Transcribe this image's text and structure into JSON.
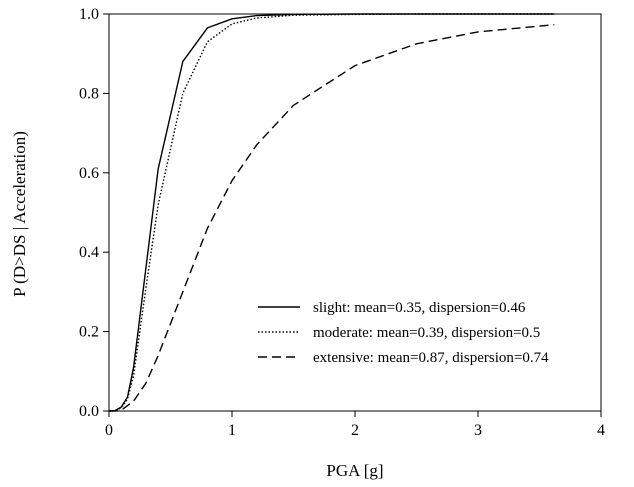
{
  "chart_data": {
    "type": "line",
    "title": "",
    "xlabel": "PGA [g]",
    "ylabel": "P (D>DS | Acceleration)",
    "xlim": [
      0,
      4
    ],
    "ylim": [
      0,
      1.0
    ],
    "xticks": [
      "0",
      "1",
      "2",
      "3",
      "4"
    ],
    "yticks": [
      "0.0",
      "0.2",
      "0.4",
      "0.6",
      "0.8",
      "1.0"
    ],
    "grid": false,
    "legend_position": "bottom-right",
    "series": [
      {
        "name": "slight: mean=0.35, dispersion=0.46",
        "style": "solid",
        "x": [
          0,
          0.05,
          0.1,
          0.15,
          0.2,
          0.3,
          0.4,
          0.6,
          0.8,
          1.0,
          1.2,
          1.5,
          2.0,
          2.5,
          3.0,
          3.62
        ],
        "y": [
          0,
          0.001,
          0.01,
          0.035,
          0.11,
          0.36,
          0.61,
          0.88,
          0.965,
          0.988,
          0.996,
          0.999,
          1.0,
          1.0,
          1.0,
          1.0
        ]
      },
      {
        "name": "moderate: mean=0.39, dispersion=0.5",
        "style": "dotted",
        "x": [
          0,
          0.05,
          0.1,
          0.15,
          0.2,
          0.3,
          0.4,
          0.6,
          0.8,
          1.0,
          1.2,
          1.5,
          2.0,
          2.5,
          3.0,
          3.62
        ],
        "y": [
          0,
          0.001,
          0.008,
          0.03,
          0.09,
          0.31,
          0.52,
          0.8,
          0.93,
          0.975,
          0.99,
          0.997,
          0.999,
          1.0,
          1.0,
          1.0
        ]
      },
      {
        "name": "extensive: mean=0.87, dispersion=0.74",
        "style": "dashed",
        "x": [
          0,
          0.05,
          0.1,
          0.2,
          0.3,
          0.4,
          0.5,
          0.6,
          0.8,
          1.0,
          1.2,
          1.5,
          2.0,
          2.5,
          3.0,
          3.62
        ],
        "y": [
          0,
          0.0,
          0.002,
          0.025,
          0.07,
          0.14,
          0.22,
          0.3,
          0.46,
          0.58,
          0.67,
          0.77,
          0.87,
          0.925,
          0.955,
          0.973
        ]
      }
    ]
  }
}
